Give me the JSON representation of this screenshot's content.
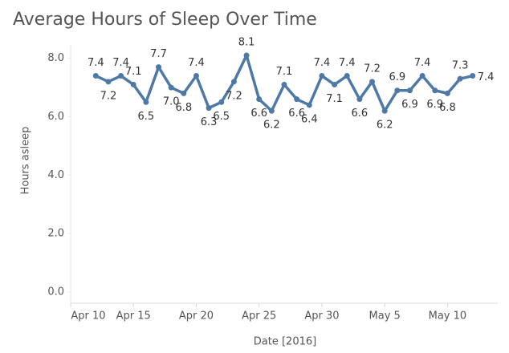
{
  "chart_data": {
    "type": "line",
    "title": "Average Hours of Sleep Over Time",
    "x_label": "Date [2016]",
    "y_label": "Hours asleep",
    "x": [
      "2016-04-12",
      "2016-04-13",
      "2016-04-14",
      "2016-04-15",
      "2016-04-16",
      "2016-04-17",
      "2016-04-18",
      "2016-04-19",
      "2016-04-20",
      "2016-04-21",
      "2016-04-22",
      "2016-04-23",
      "2016-04-24",
      "2016-04-25",
      "2016-04-26",
      "2016-04-27",
      "2016-04-28",
      "2016-04-29",
      "2016-04-30",
      "2016-05-01",
      "2016-05-02",
      "2016-05-03",
      "2016-05-04",
      "2016-05-05",
      "2016-05-06",
      "2016-05-07",
      "2016-05-08",
      "2016-05-09",
      "2016-05-10",
      "2016-05-11",
      "2016-05-12"
    ],
    "series": [
      {
        "name": "Hours asleep",
        "color": "#4e79a7",
        "values": [
          7.4,
          7.2,
          7.4,
          7.1,
          6.5,
          7.7,
          7.0,
          6.8,
          7.4,
          6.3,
          6.5,
          7.2,
          8.1,
          6.6,
          6.2,
          7.1,
          6.6,
          6.4,
          7.4,
          7.1,
          7.4,
          6.6,
          7.2,
          6.2,
          6.9,
          6.9,
          7.4,
          6.9,
          6.8,
          7.3,
          7.4
        ],
        "value_labels": [
          "7.4",
          "7.2",
          "7.4",
          "7.1",
          "6.5",
          "7.7",
          "7.0",
          "6.8",
          "7.4",
          "6.3",
          "6.5",
          "7.2",
          "8.1",
          "6.6",
          "6.2",
          "7.1",
          "6.6",
          "6.4",
          "7.4",
          "7.1",
          "7.4",
          "6.6",
          "7.2",
          "6.2",
          "6.9",
          "6.9",
          "7.4",
          "6.9",
          "6.8",
          "7.3",
          "7.4"
        ]
      }
    ],
    "xlim": [
      "2016-04-10",
      "2016-05-14"
    ],
    "xticks": [
      {
        "value": "2016-04-10",
        "label": "Apr 10"
      },
      {
        "value": "2016-04-15",
        "label": "Apr 15"
      },
      {
        "value": "2016-04-20",
        "label": "Apr 20"
      },
      {
        "value": "2016-04-25",
        "label": "Apr 25"
      },
      {
        "value": "2016-04-30",
        "label": "Apr 30"
      },
      {
        "value": "2016-05-05",
        "label": "May 5"
      },
      {
        "value": "2016-05-10",
        "label": "May 10"
      }
    ],
    "ylim": [
      0,
      8.2
    ],
    "yticks": [
      {
        "value": 0,
        "label": "0.0"
      },
      {
        "value": 2,
        "label": "2.0"
      },
      {
        "value": 4,
        "label": "4.0"
      },
      {
        "value": 6,
        "label": "6.0"
      },
      {
        "value": 8,
        "label": "8.0"
      }
    ]
  }
}
